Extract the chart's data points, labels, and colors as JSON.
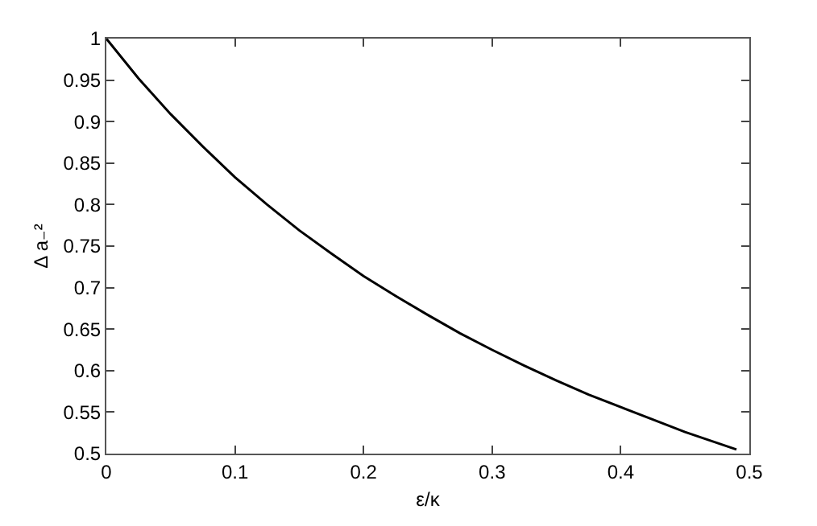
{
  "chart_data": {
    "type": "line",
    "xlabel": "ε/κ",
    "ylabel": "Δ a₋²",
    "x": [
      0,
      0.025,
      0.05,
      0.075,
      0.1,
      0.125,
      0.15,
      0.175,
      0.2,
      0.225,
      0.25,
      0.275,
      0.3,
      0.325,
      0.35,
      0.375,
      0.4,
      0.425,
      0.45,
      0.49
    ],
    "series": [
      {
        "color": "#000000",
        "values": [
          1,
          0.952,
          0.909,
          0.87,
          0.833,
          0.8,
          0.769,
          0.741,
          0.714,
          0.69,
          0.667,
          0.645,
          0.625,
          0.606,
          0.588,
          0.571,
          0.556,
          0.541,
          0.526,
          0.505
        ]
      }
    ],
    "xlim": [
      0,
      0.5
    ],
    "xticks": [
      0,
      0.1,
      0.2,
      0.3,
      0.4,
      0.5
    ],
    "ylim": [
      0.5,
      1
    ],
    "yticks": [
      0.5,
      0.55,
      0.6,
      0.65,
      0.7,
      0.75,
      0.8,
      0.85,
      0.9,
      0.95,
      1
    ],
    "marker": "none",
    "line_style": "solid"
  }
}
